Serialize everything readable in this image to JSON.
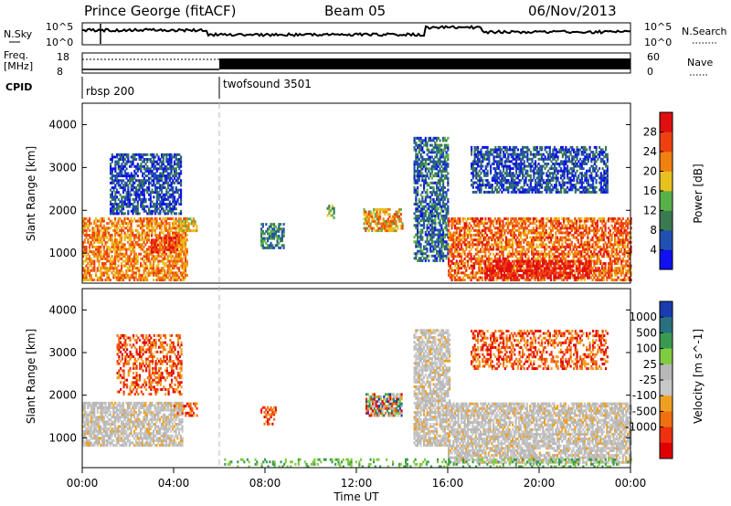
{
  "header": {
    "station": "Prince George (fitACF)",
    "beam": "Beam 05",
    "date": "06/Nov/2013"
  },
  "top_panel": {
    "left_label": "N.Sky",
    "right_label": "N.Search",
    "left_ticks": [
      "10^5",
      "10^0"
    ],
    "right_ticks": [
      "10^5",
      "10^0"
    ]
  },
  "freq_panel": {
    "left_label_line1": "Freq.",
    "left_label_line2": "[MHz]",
    "right_label": "Nave",
    "left_ticks": [
      "18",
      "8"
    ],
    "right_ticks": [
      "60",
      "0"
    ]
  },
  "cpid": {
    "label": "CPID",
    "segments": [
      {
        "name": "rbsp 200",
        "start_hour": 0
      },
      {
        "name": "twofsound 3501",
        "start_hour": 6
      }
    ]
  },
  "x_axis": {
    "label": "Time UT",
    "ticks": [
      "00:00",
      "04:00",
      "08:00",
      "12:00",
      "16:00",
      "20:00",
      "00:00"
    ],
    "range_hours": [
      0,
      24
    ]
  },
  "colors": {
    "power": [
      "#1010f0",
      "#2050b0",
      "#3a7a50",
      "#58b048",
      "#e8c020",
      "#f08010",
      "#f04010",
      "#e01010"
    ],
    "velocity": [
      "#1a3cb0",
      "#2a7080",
      "#3a9a50",
      "#80cc40",
      "#b8b8b8",
      "#c8c8c8",
      "#f0a020",
      "#f07010",
      "#f03010",
      "#e00000"
    ]
  },
  "chart_data": [
    {
      "type": "heatmap",
      "panel": "power",
      "ylabel": "Slant Range [km]",
      "ylim": [
        300,
        4500
      ],
      "yticks": [
        1000,
        2000,
        3000,
        4000
      ],
      "colorbar": {
        "label": "Power [dB]",
        "ticks": [
          4,
          8,
          12,
          16,
          20,
          24,
          28
        ],
        "range": [
          0,
          32
        ]
      },
      "echo_regions": [
        {
          "t0": 0.0,
          "t1": 4.6,
          "r0": 350,
          "r1": 1800,
          "level": 22
        },
        {
          "t0": 3.0,
          "t1": 4.2,
          "r0": 1000,
          "r1": 1400,
          "level": 28
        },
        {
          "t0": 4.2,
          "t1": 5.0,
          "r0": 1500,
          "r1": 1800,
          "level": 18
        },
        {
          "t0": 1.2,
          "t1": 4.3,
          "r0": 1900,
          "r1": 3300,
          "level": 6
        },
        {
          "t0": 7.8,
          "t1": 8.8,
          "r0": 1100,
          "r1": 1700,
          "level": 10
        },
        {
          "t0": 10.7,
          "t1": 11.0,
          "r0": 1800,
          "r1": 2100,
          "level": 14
        },
        {
          "t0": 12.3,
          "t1": 14.0,
          "r0": 1500,
          "r1": 2000,
          "level": 20
        },
        {
          "t0": 14.5,
          "t1": 16.0,
          "r0": 800,
          "r1": 3700,
          "level": 8
        },
        {
          "t0": 16.0,
          "t1": 24.0,
          "r0": 350,
          "r1": 1800,
          "level": 24
        },
        {
          "t0": 17.6,
          "t1": 22.2,
          "r0": 400,
          "r1": 800,
          "level": 30
        },
        {
          "t0": 17.0,
          "t1": 23.0,
          "r0": 2400,
          "r1": 3500,
          "level": 6
        }
      ]
    },
    {
      "type": "heatmap",
      "panel": "velocity",
      "ylabel": "Slant Range [km]",
      "ylim": [
        300,
        4500
      ],
      "yticks": [
        1000,
        2000,
        3000,
        4000
      ],
      "colorbar": {
        "label": "Velocity [m s^-1]",
        "ticks": [
          "1000",
          "500",
          "100",
          "25",
          "-25",
          "-100",
          "-500",
          "-1000"
        ]
      },
      "echo_regions": [
        {
          "t0": 0.0,
          "t1": 4.4,
          "r0": 800,
          "r1": 1800,
          "class": "ground"
        },
        {
          "t0": 4.0,
          "t1": 5.0,
          "r0": 1500,
          "r1": 1800,
          "class": "negative"
        },
        {
          "t0": 1.5,
          "t1": 4.3,
          "r0": 2000,
          "r1": 3400,
          "class": "negative"
        },
        {
          "t0": 7.8,
          "t1": 8.5,
          "r0": 1300,
          "r1": 1700,
          "class": "negative"
        },
        {
          "t0": 12.4,
          "t1": 14.0,
          "r0": 1500,
          "r1": 2000,
          "class": "mixed"
        },
        {
          "t0": 14.5,
          "t1": 16.1,
          "r0": 800,
          "r1": 3500,
          "class": "ground"
        },
        {
          "t0": 16.0,
          "t1": 24.0,
          "r0": 400,
          "r1": 1800,
          "class": "ground"
        },
        {
          "t0": 17.0,
          "t1": 23.0,
          "r0": 2600,
          "r1": 3500,
          "class": "negative"
        },
        {
          "t0": 6.0,
          "t1": 24.0,
          "r0": 300,
          "r1": 500,
          "class": "positive"
        }
      ]
    }
  ]
}
